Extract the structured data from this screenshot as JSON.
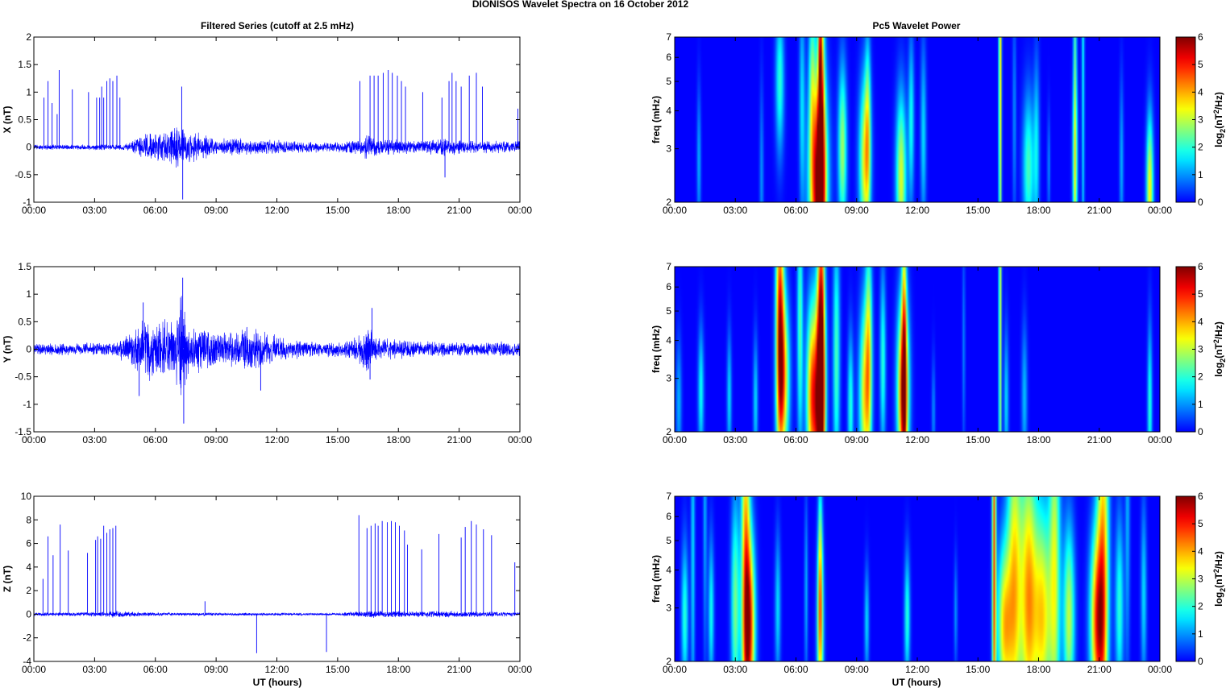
{
  "figure": {
    "title": "DIONISOS Wavelet Spectra on 16 October   2012",
    "left_title": "Filtered Series (cutoff at 2.5 mHz)",
    "right_title": "Pc5 Wavelet Power",
    "xlabel": "UT (hours)",
    "time_ticks": [
      "00:00",
      "03:00",
      "06:00",
      "09:00",
      "12:00",
      "15:00",
      "18:00",
      "21:00",
      "00:00"
    ],
    "colorbar_label": "log2(nT2/Hz)",
    "colormap": "jet",
    "trace_color": "#0000ff"
  },
  "chart_data": [
    {
      "type": "line",
      "panel": "X",
      "ylabel": "X (nT)",
      "x_range_hours": [
        0,
        24
      ],
      "ylim": [
        -1,
        2
      ],
      "yticks": [
        -1,
        -0.5,
        0,
        0.5,
        1,
        1.5,
        2
      ],
      "noise_envelope": [
        [
          0,
          0.05
        ],
        [
          4.5,
          0.06
        ],
        [
          5,
          0.15
        ],
        [
          5.5,
          0.28
        ],
        [
          6.5,
          0.32
        ],
        [
          7,
          0.45
        ],
        [
          7.5,
          0.35
        ],
        [
          8.5,
          0.25
        ],
        [
          9,
          0.15
        ],
        [
          10,
          0.2
        ],
        [
          11,
          0.16
        ],
        [
          13,
          0.12
        ],
        [
          15,
          0.1
        ],
        [
          16,
          0.16
        ],
        [
          16.5,
          0.25
        ],
        [
          17,
          0.18
        ],
        [
          19,
          0.12
        ],
        [
          20,
          0.18
        ],
        [
          21,
          0.15
        ],
        [
          23.5,
          0.12
        ],
        [
          24,
          0.15
        ]
      ],
      "spikes": [
        [
          0.5,
          0.9
        ],
        [
          0.7,
          1.2
        ],
        [
          0.9,
          0.8
        ],
        [
          1.15,
          0.6
        ],
        [
          1.25,
          1.4
        ],
        [
          1.9,
          1.05
        ],
        [
          2.7,
          1.0
        ],
        [
          3.1,
          0.9
        ],
        [
          3.25,
          0.9
        ],
        [
          3.35,
          1.1
        ],
        [
          3.45,
          0.9
        ],
        [
          3.6,
          1.2
        ],
        [
          3.75,
          1.25
        ],
        [
          3.9,
          1.2
        ],
        [
          4.1,
          1.3
        ],
        [
          4.25,
          0.9
        ],
        [
          7.3,
          1.1
        ],
        [
          7.35,
          -0.95
        ],
        [
          16.1,
          1.2
        ],
        [
          16.6,
          1.3
        ],
        [
          16.8,
          1.3
        ],
        [
          17.0,
          1.3
        ],
        [
          17.25,
          1.35
        ],
        [
          17.5,
          1.4
        ],
        [
          17.7,
          1.35
        ],
        [
          17.95,
          1.3
        ],
        [
          18.15,
          1.2
        ],
        [
          18.35,
          1.1
        ],
        [
          19.2,
          1.0
        ],
        [
          20.15,
          0.9
        ],
        [
          20.3,
          -0.55
        ],
        [
          20.5,
          1.2
        ],
        [
          20.65,
          1.35
        ],
        [
          20.85,
          1.2
        ],
        [
          21.1,
          1.1
        ],
        [
          21.5,
          1.3
        ],
        [
          21.85,
          1.35
        ],
        [
          22.15,
          1.1
        ],
        [
          23.9,
          0.7
        ],
        [
          24.0,
          -0.8
        ]
      ]
    },
    {
      "type": "line",
      "panel": "Y",
      "ylabel": "Y (nT)",
      "x_range_hours": [
        0,
        24
      ],
      "ylim": [
        -1.5,
        1.5
      ],
      "yticks": [
        -1.5,
        -1,
        -0.5,
        0,
        0.5,
        1,
        1.5
      ],
      "noise_envelope": [
        [
          0,
          0.12
        ],
        [
          4,
          0.12
        ],
        [
          5,
          0.4
        ],
        [
          5.5,
          0.6
        ],
        [
          6.5,
          0.55
        ],
        [
          7,
          0.6
        ],
        [
          7.3,
          1.2
        ],
        [
          7.6,
          0.5
        ],
        [
          8.5,
          0.4
        ],
        [
          9.5,
          0.3
        ],
        [
          10.5,
          0.45
        ],
        [
          11.5,
          0.35
        ],
        [
          12.5,
          0.2
        ],
        [
          15,
          0.15
        ],
        [
          16,
          0.25
        ],
        [
          16.5,
          0.5
        ],
        [
          17,
          0.25
        ],
        [
          19,
          0.15
        ],
        [
          24,
          0.15
        ]
      ],
      "spikes": [
        [
          7.35,
          1.3
        ],
        [
          7.4,
          -1.35
        ],
        [
          5.2,
          -0.85
        ],
        [
          5.4,
          0.85
        ],
        [
          11.2,
          -0.75
        ],
        [
          16.7,
          0.75
        ],
        [
          16.6,
          -0.55
        ],
        [
          24.0,
          0.3
        ],
        [
          24.0,
          -0.45
        ]
      ]
    },
    {
      "type": "line",
      "panel": "Z",
      "ylabel": "Z (nT)",
      "x_range_hours": [
        0,
        24
      ],
      "ylim": [
        -4,
        10
      ],
      "yticks": [
        -4,
        -2,
        0,
        2,
        4,
        6,
        8,
        10
      ],
      "noise_envelope": [
        [
          0,
          0.15
        ],
        [
          3,
          0.2
        ],
        [
          4,
          0.3
        ],
        [
          6,
          0.15
        ],
        [
          15,
          0.12
        ],
        [
          16.5,
          0.35
        ],
        [
          18,
          0.3
        ],
        [
          20.5,
          0.3
        ],
        [
          22,
          0.25
        ],
        [
          24,
          0.2
        ]
      ],
      "spikes": [
        [
          0.45,
          3
        ],
        [
          0.7,
          6.6
        ],
        [
          0.95,
          5
        ],
        [
          1.3,
          7.6
        ],
        [
          1.7,
          5.4
        ],
        [
          2.65,
          5.2
        ],
        [
          3.05,
          6.3
        ],
        [
          3.15,
          6.6
        ],
        [
          3.3,
          6.4
        ],
        [
          3.45,
          7.5
        ],
        [
          3.6,
          6.9
        ],
        [
          3.75,
          7.2
        ],
        [
          3.9,
          7.3
        ],
        [
          4.05,
          7.5
        ],
        [
          8.45,
          1.1
        ],
        [
          11.0,
          -3.3
        ],
        [
          14.45,
          -3.2
        ],
        [
          16.05,
          8.4
        ],
        [
          16.45,
          7.3
        ],
        [
          16.65,
          7.5
        ],
        [
          16.85,
          7.7
        ],
        [
          17.0,
          7.5
        ],
        [
          17.2,
          7.9
        ],
        [
          17.45,
          7.8
        ],
        [
          17.65,
          7.9
        ],
        [
          17.85,
          7.8
        ],
        [
          18.05,
          7.5
        ],
        [
          18.3,
          7.1
        ],
        [
          18.45,
          5.9
        ],
        [
          19.15,
          5.5
        ],
        [
          20.0,
          6.8
        ],
        [
          21.1,
          6.5
        ],
        [
          21.3,
          7.4
        ],
        [
          21.6,
          7.9
        ],
        [
          21.85,
          7.6
        ],
        [
          22.2,
          7.2
        ],
        [
          22.6,
          6.7
        ],
        [
          23.75,
          4.4
        ],
        [
          24.0,
          6.4
        ]
      ]
    },
    {
      "type": "heatmap",
      "panel": "X wavelet",
      "ylabel": "freq (mHz)",
      "yscale": "log",
      "ylim": [
        2,
        7
      ],
      "yticks": [
        2,
        3,
        4,
        5,
        6,
        7
      ],
      "x_range_hours": [
        0,
        24
      ],
      "colorbar": {
        "min": 0,
        "max": 6,
        "ticks": [
          0,
          1,
          2,
          3,
          4,
          5,
          6
        ]
      },
      "blobs": [
        [
          7.1,
          2.3,
          0.3,
          0.55,
          6.0
        ],
        [
          7.25,
          3.6,
          0.12,
          1.2,
          3.5
        ],
        [
          7.2,
          6.2,
          0.06,
          1.5,
          2.2
        ],
        [
          5.2,
          5.0,
          0.15,
          0.4,
          2.0
        ],
        [
          6.8,
          5.4,
          0.12,
          0.5,
          1.8
        ],
        [
          6.3,
          4.2,
          0.1,
          0.6,
          1.5
        ],
        [
          8.3,
          3.0,
          0.15,
          0.45,
          2.8
        ],
        [
          9.4,
          2.7,
          0.2,
          0.45,
          3.2
        ],
        [
          9.55,
          3.6,
          0.1,
          0.5,
          2.0
        ],
        [
          11.2,
          2.4,
          0.18,
          0.45,
          3.2
        ],
        [
          11.7,
          3.7,
          0.1,
          0.45,
          1.8
        ],
        [
          12.3,
          3.3,
          0.1,
          0.5,
          1.5
        ],
        [
          16.1,
          6.3,
          0.05,
          1.5,
          3.8
        ],
        [
          17.5,
          2.6,
          0.2,
          0.4,
          2.2
        ],
        [
          17.9,
          3.0,
          0.1,
          0.5,
          1.5
        ],
        [
          19.8,
          2.7,
          0.1,
          0.45,
          1.8
        ],
        [
          19.8,
          5.5,
          0.06,
          1.6,
          2.0
        ],
        [
          20.2,
          6.0,
          0.05,
          1.5,
          1.7
        ],
        [
          23.5,
          2.2,
          0.12,
          0.4,
          3.5
        ],
        [
          22.1,
          2.7,
          0.07,
          0.45,
          1.2
        ],
        [
          1.2,
          2.7,
          0.07,
          0.4,
          1.2
        ],
        [
          4.3,
          2.4,
          0.07,
          0.5,
          1.0
        ],
        [
          16.8,
          3.8,
          0.06,
          0.6,
          1.0
        ],
        [
          18.5,
          2.6,
          0.05,
          0.3,
          1.0
        ]
      ]
    },
    {
      "type": "heatmap",
      "panel": "Y wavelet",
      "ylabel": "freq (mHz)",
      "yscale": "log",
      "ylim": [
        2,
        7
      ],
      "yticks": [
        2,
        3,
        4,
        5,
        6,
        7
      ],
      "x_range_hours": [
        0,
        24
      ],
      "colorbar": {
        "min": 0,
        "max": 6,
        "ticks": [
          0,
          1,
          2,
          3,
          4,
          5,
          6
        ]
      },
      "blobs": [
        [
          5.2,
          4.6,
          0.14,
          0.75,
          4.8
        ],
        [
          5.4,
          3.0,
          0.2,
          0.45,
          3.5
        ],
        [
          6.8,
          2.6,
          0.2,
          0.5,
          4.5
        ],
        [
          7.2,
          2.5,
          0.18,
          0.6,
          5.5
        ],
        [
          7.25,
          4.8,
          0.12,
          1.0,
          4.0
        ],
        [
          6.2,
          4.5,
          0.1,
          0.7,
          2.3
        ],
        [
          8.0,
          3.5,
          0.12,
          0.7,
          2.2
        ],
        [
          8.7,
          2.4,
          0.1,
          0.4,
          2.0
        ],
        [
          9.4,
          2.6,
          0.2,
          0.5,
          3.3
        ],
        [
          9.6,
          3.9,
          0.12,
          0.6,
          2.6
        ],
        [
          11.3,
          2.7,
          0.2,
          0.5,
          5.2
        ],
        [
          11.35,
          4.3,
          0.08,
          1.0,
          2.8
        ],
        [
          1.3,
          2.7,
          0.1,
          0.35,
          1.8
        ],
        [
          0.2,
          2.5,
          0.1,
          0.35,
          1.2
        ],
        [
          2.7,
          2.6,
          0.08,
          0.35,
          1.5
        ],
        [
          4.0,
          2.5,
          0.08,
          0.35,
          1.5
        ],
        [
          10.3,
          3.4,
          0.1,
          0.5,
          2.0
        ],
        [
          12.8,
          2.3,
          0.06,
          0.3,
          1.0
        ],
        [
          16.1,
          5.5,
          0.05,
          1.6,
          3.2
        ],
        [
          16.4,
          2.5,
          0.08,
          0.4,
          1.5
        ],
        [
          17.3,
          2.6,
          0.1,
          0.4,
          1.3
        ],
        [
          23.5,
          2.4,
          0.08,
          0.45,
          2.0
        ],
        [
          14.3,
          3.8,
          0.05,
          0.6,
          0.9
        ]
      ]
    },
    {
      "type": "heatmap",
      "panel": "Z wavelet",
      "ylabel": "freq (mHz)",
      "yscale": "log",
      "ylim": [
        2,
        7
      ],
      "yticks": [
        2,
        3,
        4,
        5,
        6,
        7
      ],
      "x_range_hours": [
        0,
        24
      ],
      "colorbar": {
        "min": 0,
        "max": 6,
        "ticks": [
          0,
          1,
          2,
          3,
          4,
          5,
          6
        ]
      },
      "blobs": [
        [
          3.7,
          2.6,
          0.2,
          0.5,
          4.8
        ],
        [
          3.5,
          4.8,
          0.15,
          1.2,
          3.5
        ],
        [
          3.0,
          3.0,
          0.15,
          0.6,
          2.5
        ],
        [
          7.2,
          2.5,
          0.12,
          0.45,
          3.0
        ],
        [
          7.2,
          4.1,
          0.08,
          0.5,
          2.5
        ],
        [
          0.5,
          2.8,
          0.12,
          0.4,
          2.0
        ],
        [
          0.9,
          4.5,
          0.07,
          1.0,
          1.5
        ],
        [
          1.8,
          2.9,
          0.1,
          0.4,
          1.8
        ],
        [
          5.1,
          3.0,
          0.1,
          0.4,
          1.5
        ],
        [
          6.5,
          3.4,
          0.06,
          0.5,
          1.2
        ],
        [
          9.5,
          2.7,
          0.08,
          0.3,
          1.5
        ],
        [
          11.5,
          2.8,
          0.1,
          0.35,
          2.0
        ],
        [
          15.8,
          5.0,
          0.07,
          1.5,
          4.5
        ],
        [
          16.3,
          2.6,
          0.25,
          0.45,
          3.5
        ],
        [
          16.8,
          3.6,
          0.25,
          0.9,
          3.5
        ],
        [
          17.5,
          3.2,
          0.3,
          0.8,
          4.0
        ],
        [
          18.2,
          2.8,
          0.3,
          0.6,
          3.5
        ],
        [
          18.8,
          4.0,
          0.2,
          1.0,
          3.0
        ],
        [
          19.5,
          2.8,
          0.2,
          0.5,
          3.0
        ],
        [
          20.9,
          2.7,
          0.25,
          0.5,
          4.5
        ],
        [
          21.2,
          4.6,
          0.2,
          1.2,
          3.5
        ],
        [
          22.0,
          3.0,
          0.15,
          0.5,
          2.0
        ],
        [
          23.2,
          3.3,
          0.1,
          0.5,
          1.5
        ],
        [
          13.9,
          2.9,
          0.06,
          0.3,
          1.0
        ],
        [
          1.5,
          6.3,
          0.06,
          0.8,
          1.2
        ],
        [
          22.4,
          5.8,
          0.08,
          0.8,
          1.2
        ]
      ]
    }
  ]
}
